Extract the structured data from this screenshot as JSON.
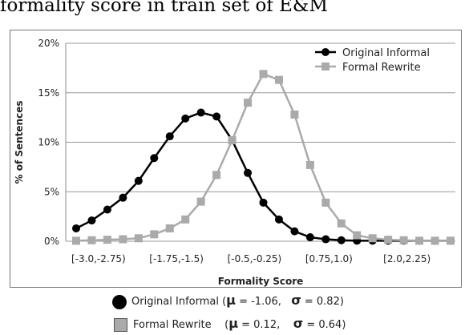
{
  "caption": "formality score in train set of E&M",
  "chart_data": {
    "type": "line",
    "xlabel": "Formality Score",
    "ylabel": "% of Sentences",
    "ylim": [
      0,
      20
    ],
    "yticks": [
      "0%",
      "5%",
      "10%",
      "15%",
      "20%"
    ],
    "grid": true,
    "legend_position": "top-right",
    "x_tick_labels": [
      "[-3.0,-2.75)",
      "[-1.75,-1.5)",
      "[-0.5,-0.25)",
      "[0.75,1.0)",
      "[2.0,2.25)"
    ],
    "x_tick_indices": [
      0,
      5,
      10,
      15,
      20
    ],
    "num_bins": 25,
    "series": [
      {
        "name": "Original Informal",
        "color": "#000000",
        "marker": "circle",
        "values": [
          1.3,
          2.1,
          3.2,
          4.4,
          6.1,
          8.4,
          10.6,
          12.4,
          13.0,
          12.6,
          10.2,
          6.9,
          3.9,
          2.2,
          1.0,
          0.4,
          0.2,
          0.1,
          0.05,
          0.05,
          0.05,
          0.05,
          0.05,
          0.05,
          0.05
        ]
      },
      {
        "name": "Formal Rewrite",
        "color": "#aaaaaa",
        "marker": "square",
        "values": [
          0.05,
          0.1,
          0.15,
          0.2,
          0.3,
          0.7,
          1.3,
          2.2,
          4.0,
          6.7,
          10.2,
          14.0,
          16.9,
          16.3,
          12.8,
          7.7,
          3.9,
          1.8,
          0.6,
          0.3,
          0.15,
          0.1,
          0.05,
          0.05,
          0.05
        ]
      }
    ]
  },
  "stats_legend": [
    {
      "label": "Original Informal (",
      "mu_symbol": "μ",
      "mu_text": " = -1.06,   ",
      "sigma_symbol": "σ",
      "sigma_text": " = 0.82)"
    },
    {
      "label": "Formal Rewrite    (",
      "mu_symbol": "μ",
      "mu_text": " = 0.12,    ",
      "sigma_symbol": "σ",
      "sigma_text": " = 0.64)"
    }
  ]
}
